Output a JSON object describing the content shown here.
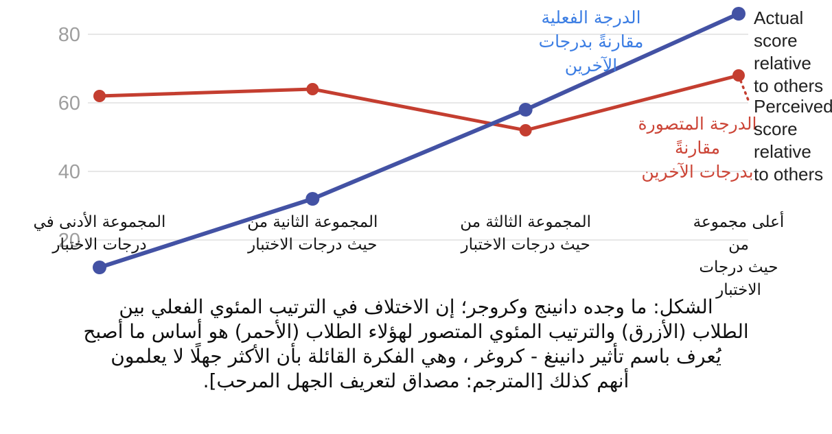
{
  "chart_data": {
    "type": "line",
    "title": "",
    "xlabel": "",
    "ylabel": "",
    "grid": true,
    "legend_position": "right",
    "ylim": [
      8,
      90
    ],
    "yticks": [
      20,
      40,
      60,
      80
    ],
    "gridline_color": "#e7e7e7",
    "tick_color": "#9e9e9e",
    "categories": [
      "المجموعة الأدنى في\nدرجات الاختبار",
      "المجموعة الثانية من\nحيث درجات الاختبار",
      "المجموعة الثالثة من\nحيث درجات الاختبار",
      "أعلى مجموعة من\nحيث درجات الاختبار"
    ],
    "series": [
      {
        "name": "Actual score relative to others",
        "name_ar": "الدرجة الفعلية مقارنةً بدرجات الآخرين",
        "color": "#4352a4",
        "values": [
          12,
          32,
          58,
          86
        ]
      },
      {
        "name": "Perceived score relative to others",
        "name_ar": "الدرجة المتصورة مقارنةً بدرجات الآخرين",
        "color": "#c43e30",
        "values": [
          62,
          64,
          52,
          68
        ]
      }
    ]
  },
  "annotations": {
    "actual_ar": "الدرجة الفعلية\nمقارنةً بدرجات\nالآخرين",
    "actual_ar_color": "#3b7de3",
    "perceived_ar": "الدرجة المتصورة مقارنةً\nبدرجات الآخرين",
    "perceived_ar_color": "#cc4537",
    "actual_en": "Actual\nscore\nrelative\nto others",
    "perceived_en": "Perceived\nscore\nrelative\nto others",
    "legend_text_color": "#212121"
  },
  "caption": "الشكل: ما وجده دانينج وكروجر؛  إن الاختلاف في الترتيب المئوي الفعلي بين\nالطلاب (الأزرق) والترتيب المئوي المتصور لهؤلاء الطلاب (الأحمر) هو أساس ما أصبح\nيُعرف باسم تأثير دانينغ - كروغر ، وهي الفكرة القائلة بأن الأكثر جهلًا لا يعلمون\nأنهم كذلك [المترجم: مصداق لتعريف الجهل المرحب]."
}
